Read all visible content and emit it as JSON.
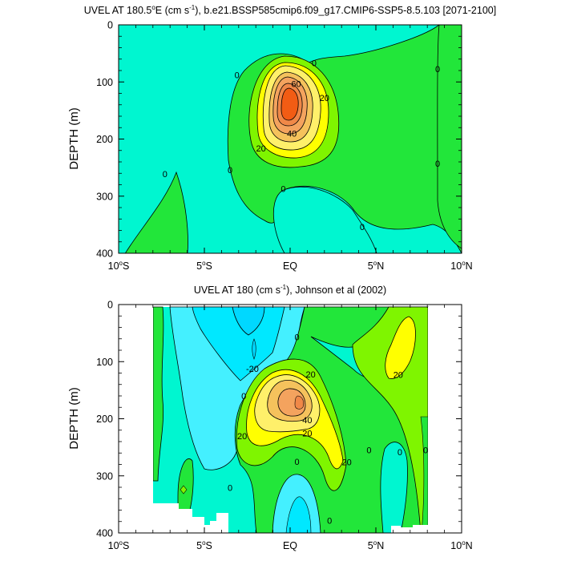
{
  "chart_data": [
    {
      "type": "contour",
      "title": "UVEL AT 180.5°E (cm s⁻¹), b.e21.BSSP585cmip6.f09_g17.CMIP6-SSP5-8.5.103 [2071-2100]",
      "title_parts": {
        "pre": "UVEL AT 180.5",
        "deg": "o",
        "mid": "E (cm s",
        "exp": "-1",
        "post": "), b.e21.BSSP585cmip6.f09_g17.CMIP6-SSP5-8.5.103 [2071-2100]"
      },
      "ylabel": "DEPTH (m)",
      "xlim": [
        -10,
        10
      ],
      "ylim": [
        400,
        0
      ],
      "x_ticks": [
        {
          "value": -10,
          "label": "10",
          "sup": "o",
          "suffix": "S"
        },
        {
          "value": -5,
          "label": "5",
          "sup": "o",
          "suffix": "S"
        },
        {
          "value": 0,
          "label": "EQ",
          "sup": "",
          "suffix": ""
        },
        {
          "value": 5,
          "label": "5",
          "sup": "o",
          "suffix": "N"
        },
        {
          "value": 10,
          "label": "10",
          "sup": "o",
          "suffix": "N"
        }
      ],
      "y_ticks": [
        {
          "value": 0,
          "label": "0"
        },
        {
          "value": 100,
          "label": "100"
        },
        {
          "value": 200,
          "label": "200"
        },
        {
          "value": 300,
          "label": "300"
        },
        {
          "value": 400,
          "label": "400"
        }
      ],
      "contour_interval": 10,
      "fill_colors": {
        "-40": "#00d8ff",
        "-30": "#00e8ff",
        "-20": "#44f0ff",
        "-10": "#00f6d0",
        "0": "#22e63a",
        "10": "#7ff500",
        "20": "#ffff00",
        "30": "#fff06a",
        "40": "#f5c25c",
        "50": "#f4a35e",
        "60": "#f08848",
        "70": "#f25c14"
      },
      "core": {
        "x": -0.2,
        "depth": 125,
        "max_level": 70
      },
      "contour_labels": [
        {
          "text": "0",
          "x": 1.4,
          "depth": 67
        },
        {
          "text": "0",
          "x": -3.1,
          "depth": 88
        },
        {
          "text": "0",
          "x": 8.6,
          "depth": 77
        },
        {
          "text": "60",
          "x": 0.35,
          "depth": 103
        },
        {
          "text": "20",
          "x": 2.0,
          "depth": 128
        },
        {
          "text": "40",
          "x": 0.1,
          "depth": 190
        },
        {
          "text": "20",
          "x": -1.7,
          "depth": 216
        },
        {
          "text": "0",
          "x": -3.5,
          "depth": 254
        },
        {
          "text": "0",
          "x": -7.3,
          "depth": 261
        },
        {
          "text": "0",
          "x": 8.6,
          "depth": 243
        },
        {
          "text": "0",
          "x": -0.4,
          "depth": 287
        },
        {
          "text": "0",
          "x": 4.2,
          "depth": 354
        }
      ]
    },
    {
      "type": "contour",
      "title": "UVEL AT 180 (cm s⁻¹), Johnson et al (2002)",
      "title_parts": {
        "pre": "UVEL AT 180 (cm s",
        "exp": "-1",
        "post": "), Johnson et al (2002)"
      },
      "ylabel": "DEPTH (m)",
      "xlim": [
        -10,
        10
      ],
      "ylim": [
        400,
        0
      ],
      "data_extent": {
        "x": [
          -8,
          8
        ],
        "depth": [
          10,
          400
        ]
      },
      "x_ticks": [
        {
          "value": -10,
          "label": "10",
          "sup": "o",
          "suffix": "S"
        },
        {
          "value": -5,
          "label": "5",
          "sup": "o",
          "suffix": "S"
        },
        {
          "value": 0,
          "label": "EQ",
          "sup": "",
          "suffix": ""
        },
        {
          "value": 5,
          "label": "5",
          "sup": "o",
          "suffix": "N"
        },
        {
          "value": 10,
          "label": "10",
          "sup": "o",
          "suffix": "N"
        }
      ],
      "y_ticks": [
        {
          "value": 0,
          "label": "0"
        },
        {
          "value": 100,
          "label": "100"
        },
        {
          "value": 200,
          "label": "200"
        },
        {
          "value": 300,
          "label": "300"
        },
        {
          "value": 400,
          "label": "400"
        }
      ],
      "contour_interval": 10,
      "core": {
        "x": 0.5,
        "depth": 170,
        "max_level": 50
      },
      "contour_labels": [
        {
          "text": "0",
          "x": 0.4,
          "depth": 57
        },
        {
          "text": "-20",
          "x": -2.2,
          "depth": 112
        },
        {
          "text": "20",
          "x": 1.2,
          "depth": 122
        },
        {
          "text": "0",
          "x": -2.7,
          "depth": 160
        },
        {
          "text": "20",
          "x": 6.3,
          "depth": 123
        },
        {
          "text": "40",
          "x": 1.0,
          "depth": 202
        },
        {
          "text": "20",
          "x": 1.0,
          "depth": 225
        },
        {
          "text": "20",
          "x": -2.8,
          "depth": 230
        },
        {
          "text": "20",
          "x": 3.3,
          "depth": 276
        },
        {
          "text": "0",
          "x": 4.6,
          "depth": 255
        },
        {
          "text": "0",
          "x": 6.4,
          "depth": 258
        },
        {
          "text": "0",
          "x": 7.9,
          "depth": 255
        },
        {
          "text": "0",
          "x": 0.4,
          "depth": 275
        },
        {
          "text": "0",
          "x": -3.5,
          "depth": 321
        },
        {
          "text": "0",
          "x": 2.3,
          "depth": 378
        }
      ]
    }
  ]
}
